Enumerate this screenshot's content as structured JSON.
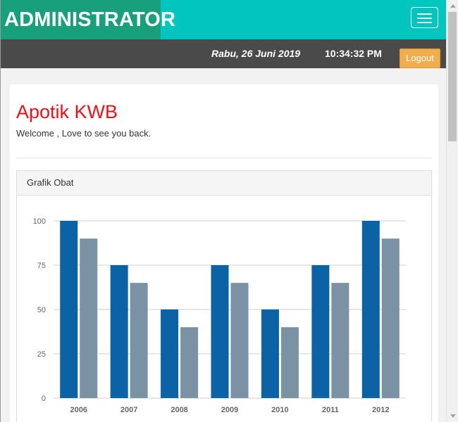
{
  "header": {
    "brand": "ADMINISTRATOR",
    "menu_icon": "hamburger-icon"
  },
  "infobar": {
    "date": "Rabu, 26 Juni 2019",
    "time": "10:34:32 PM",
    "logout_label": "Logout"
  },
  "main": {
    "title": "Apotik KWB",
    "welcome": "Welcome , Love to see you back."
  },
  "panel": {
    "heading": "Grafik Obat"
  },
  "colors": {
    "brand_bg": "#18a07c",
    "topbar_bg": "#00c6bf",
    "infobar_bg": "#4a4a4a",
    "logout_bg": "#f0ad4e",
    "title_red": "#e8101b",
    "series_a": "#0b62a4",
    "series_b": "#7a92a3"
  },
  "chart_data": {
    "type": "bar",
    "categories": [
      "2006",
      "2007",
      "2008",
      "2009",
      "2010",
      "2011",
      "2012"
    ],
    "series": [
      {
        "values": [
          100,
          75,
          50,
          75,
          50,
          75,
          100
        ]
      },
      {
        "values": [
          90,
          65,
          40,
          65,
          40,
          65,
          90
        ]
      }
    ],
    "y_ticks": [
      "0",
      "25",
      "50",
      "75",
      "100"
    ],
    "ylim": [
      0,
      100
    ],
    "grid": true
  }
}
